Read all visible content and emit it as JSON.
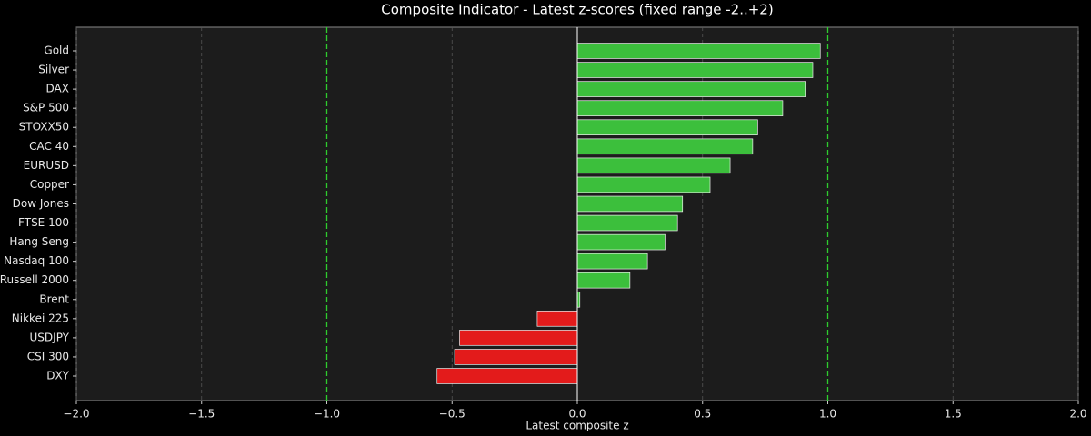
{
  "chart_data": {
    "type": "barh",
    "title": "Composite Indicator - Latest z-scores (fixed range -2..+2)",
    "x_label": "Latest composite z",
    "categories": [
      "Gold",
      "Silver",
      "DAX",
      "S&P 500",
      "STOXX50",
      "CAC 40",
      "EURUSD",
      "Copper",
      "Dow Jones",
      "FTSE 100",
      "Hang Seng",
      "Nasdaq 100",
      "Russell 2000",
      "Brent",
      "Nikkei 225",
      "USDJPY",
      "CSI 300",
      "DXY"
    ],
    "values": [
      0.97,
      0.94,
      0.91,
      0.82,
      0.72,
      0.7,
      0.61,
      0.53,
      0.42,
      0.4,
      0.35,
      0.28,
      0.21,
      0.01,
      -0.16,
      -0.47,
      -0.49,
      -0.56
    ],
    "positive_color": "#3cbf3c",
    "negative_color": "#e31b1b",
    "xlim": [
      -2.0,
      2.0
    ],
    "xticks": [
      {
        "value": -2.0,
        "label": "−2.0"
      },
      {
        "value": -1.5,
        "label": "−1.5"
      },
      {
        "value": -1.0,
        "label": "−1.0"
      },
      {
        "value": -0.5,
        "label": "−0.5"
      },
      {
        "value": 0.0,
        "label": "0.0"
      },
      {
        "value": 0.5,
        "label": "0.5"
      },
      {
        "value": 1.0,
        "label": "1.0"
      },
      {
        "value": 1.5,
        "label": "1.5"
      },
      {
        "value": 2.0,
        "label": "2.0"
      }
    ],
    "threshold_lines": [
      -1,
      1
    ],
    "threshold_color": "#2ecc2e",
    "grid": true
  }
}
